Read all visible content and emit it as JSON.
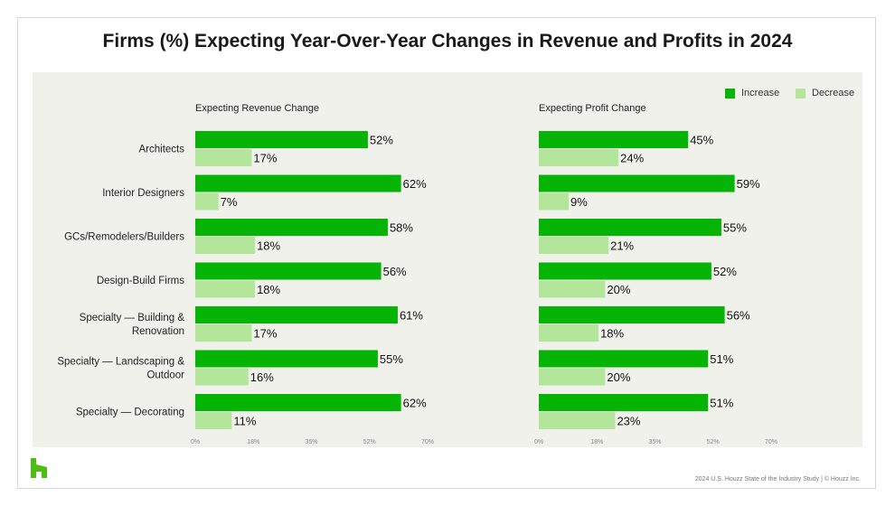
{
  "title": "Firms (%) Expecting Year-Over-Year Changes in Revenue and Profits in 2024",
  "footer": "2024 U.S. Houzz State of the Industry Study  |  © Houzz Inc.",
  "logo_icon": "houzz-logo-icon",
  "colors": {
    "increase": "#06b406",
    "decrease": "#b3e69b"
  },
  "legend": [
    {
      "label": "Increase",
      "color": "#06b406"
    },
    {
      "label": "Decrease",
      "color": "#b3e69b"
    }
  ],
  "chart_data": [
    {
      "type": "bar",
      "orientation": "horizontal",
      "title": "Expecting Revenue Change",
      "categories": [
        "Architects",
        "Interior Designers",
        "GCs/Remodelers/Builders",
        "Design-Build Firms",
        "Specialty — Building & Renovation",
        "Specialty — Landscaping & Outdoor",
        "Specialty — Decorating"
      ],
      "series": [
        {
          "name": "Increase",
          "values": [
            52,
            62,
            58,
            56,
            61,
            55,
            62
          ]
        },
        {
          "name": "Decrease",
          "values": [
            17,
            7,
            18,
            18,
            17,
            16,
            11
          ]
        }
      ],
      "xticks": [
        "0%",
        "18%",
        "35%",
        "52%",
        "70%"
      ],
      "xlim": [
        0,
        70
      ],
      "grid": false,
      "legend_position": "top-right"
    },
    {
      "type": "bar",
      "orientation": "horizontal",
      "title": "Expecting Profit Change",
      "categories": [
        "Architects",
        "Interior Designers",
        "GCs/Remodelers/Builders",
        "Design-Build Firms",
        "Specialty — Building & Renovation",
        "Specialty — Landscaping & Outdoor",
        "Specialty — Decorating"
      ],
      "series": [
        {
          "name": "Increase",
          "values": [
            45,
            59,
            55,
            52,
            56,
            51,
            51
          ]
        },
        {
          "name": "Decrease",
          "values": [
            24,
            9,
            21,
            20,
            18,
            20,
            23
          ]
        }
      ],
      "xticks": [
        "0%",
        "18%",
        "35%",
        "52%",
        "70%"
      ],
      "xlim": [
        0,
        70
      ],
      "grid": false,
      "legend_position": "top-right"
    }
  ],
  "category_lines": [
    [
      "Architects"
    ],
    [
      "Interior Designers"
    ],
    [
      "GCs/Remodelers/Builders"
    ],
    [
      "Design-Build Firms"
    ],
    [
      "Specialty — Building &",
      "Renovation"
    ],
    [
      "Specialty — Landscaping &",
      "Outdoor"
    ],
    [
      "Specialty — Decorating"
    ]
  ]
}
